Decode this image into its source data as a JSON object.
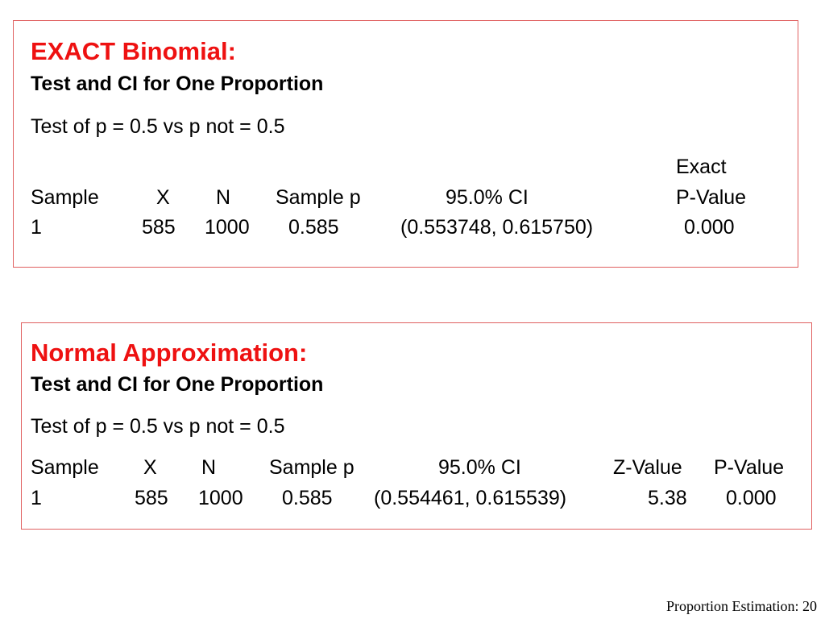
{
  "exact": {
    "heading": "EXACT Binomial:",
    "subtitle": "Test and CI for One Proportion",
    "test_line": "Test of p = 0.5 vs p not = 0.5",
    "exact_label": "Exact",
    "headers": [
      "Sample",
      "X",
      "N",
      "Sample p",
      "95.0% CI",
      "P-Value"
    ],
    "row": [
      "1",
      "585",
      "1000",
      "0.585",
      "(0.553748, 0.615750)",
      "0.000"
    ]
  },
  "normal": {
    "heading": "Normal Approximation:",
    "subtitle": "Test and CI for One Proportion",
    "test_line": "Test of p = 0.5 vs p not = 0.5",
    "headers": [
      "Sample",
      "X",
      "N",
      "Sample p",
      "95.0% CI",
      "Z-Value",
      "P-Value"
    ],
    "row": [
      "1",
      "585",
      "1000",
      "0.585",
      "(0.554461, 0.615539)",
      "5.38",
      "0.000"
    ]
  },
  "footer": "Proportion Estimation: 20",
  "colors": {
    "heading": "#ee1111",
    "border": "#e06060"
  }
}
